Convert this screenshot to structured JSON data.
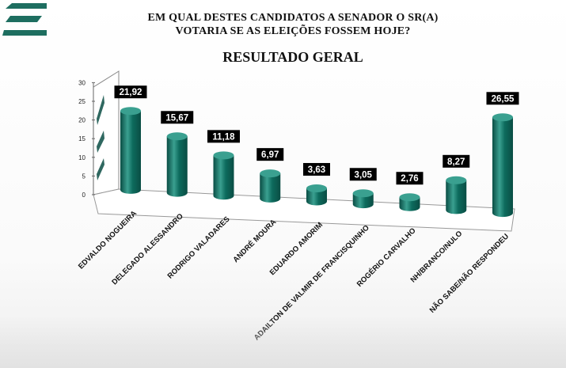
{
  "header": {
    "question_line1": "EM QUAL DESTES CANDIDATOS A SENADOR O SR(A)",
    "question_line2": "VOTARIA SE AS ELEIÇÕES FOSSEM HOJE?",
    "subtitle": "RESULTADO GERAL"
  },
  "colors": {
    "bar": "#0d6b5d",
    "bar_dark": "#0a4d44",
    "bar_light": "#3aa090",
    "label_bg": "#000000",
    "label_text": "#ffffff",
    "logo": "#1e6e60"
  },
  "chart_data": {
    "type": "bar",
    "categories": [
      "EDVALDO NOGUEIRA",
      "DELEGADO ALESSANDRO",
      "RODRIGO VALADARES",
      "ANDRÉ MOURA",
      "EDUARDO AMORIM",
      "ADAILTON DE VALMIR DE FRANCISQUINHO",
      "ROGÉRIO CARVALHO",
      "NH/BRANCO/NULO",
      "NÃO SABE/NÃO RESPONDEU"
    ],
    "values": [
      21.92,
      15.67,
      11.18,
      6.97,
      3.63,
      3.05,
      2.76,
      8.27,
      26.55
    ],
    "value_labels": [
      "21,92",
      "15,67",
      "11,18",
      "6,97",
      "3,63",
      "3,05",
      "2,76",
      "8,27",
      "26,55"
    ],
    "ylim": [
      0,
      30
    ],
    "yticks": [
      "0",
      "5",
      "10",
      "15",
      "20",
      "25",
      "30"
    ],
    "grid": false,
    "title": "RESULTADO GERAL",
    "xlabel": "",
    "ylabel": ""
  }
}
